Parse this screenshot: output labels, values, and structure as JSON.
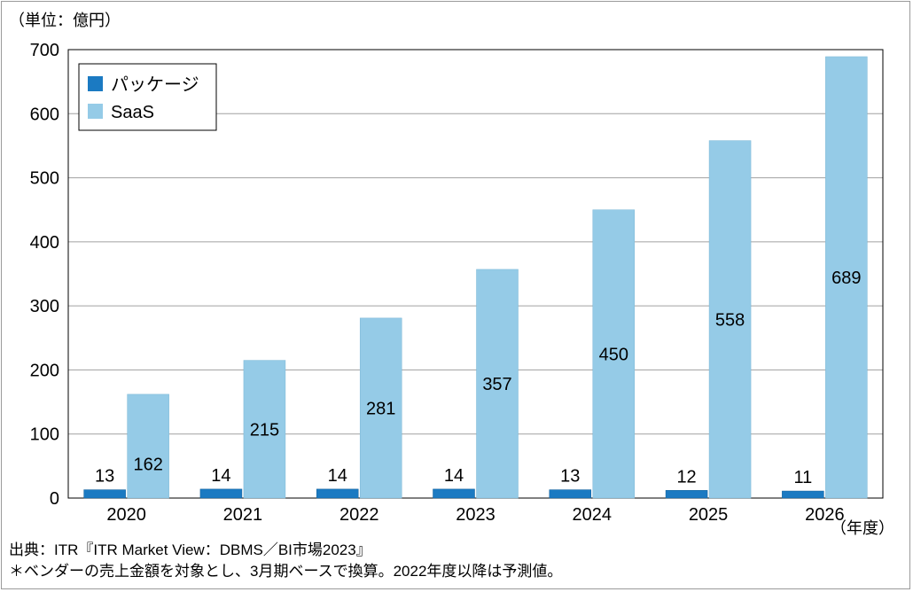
{
  "chart_data": {
    "type": "bar",
    "unit_label": "（単位：億円）",
    "x_unit_label": "（年度）",
    "categories": [
      "2020",
      "2021",
      "2022",
      "2023",
      "2024",
      "2025",
      "2026"
    ],
    "series": [
      {
        "name": "パッケージ",
        "color": "#1b7ac2",
        "values": [
          13,
          14,
          14,
          14,
          13,
          12,
          11
        ]
      },
      {
        "name": "SaaS",
        "color": "#95cbe7",
        "values": [
          162,
          215,
          281,
          357,
          450,
          558,
          689
        ]
      }
    ],
    "ylim": [
      0,
      700
    ],
    "yticks": [
      0,
      100,
      200,
      300,
      400,
      500,
      600,
      700
    ],
    "grid": true,
    "legend_position": "top-left"
  },
  "footnotes": {
    "source": "出典：ITR『ITR Market View：DBMS／BI市場2023』",
    "note": "＊ベンダーの売上金額を対象とし、3月期ベースで換算。2022年度以降は予測値。"
  }
}
